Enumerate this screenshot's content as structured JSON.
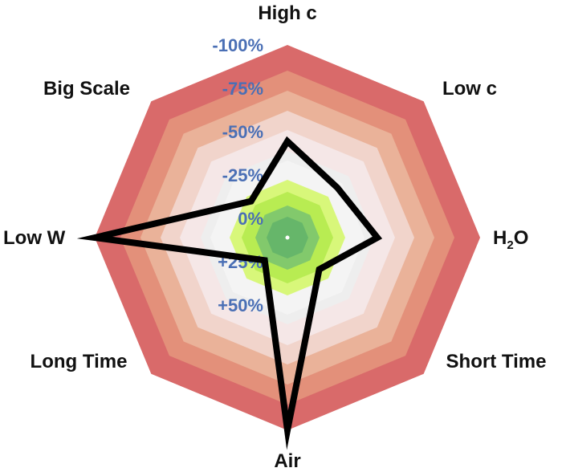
{
  "chart_data": {
    "type": "radar",
    "title": "",
    "axes": [
      "High c",
      "Low c",
      "H2O",
      "Short Time",
      "Air",
      "Long Time",
      "Low W",
      "Big Scale"
    ],
    "axis_display": [
      {
        "main": "High c"
      },
      {
        "main": "Low c"
      },
      {
        "main": "H",
        "sub": "2",
        "tail": "O"
      },
      {
        "main": "Short Time"
      },
      {
        "main": "Air"
      },
      {
        "main": "Long Time"
      },
      {
        "main": "Low W"
      },
      {
        "main": "Big Scale"
      }
    ],
    "ring_labels": [
      "-100%",
      "-75%",
      "-50%",
      "-25%",
      "0%",
      "+25%",
      "+50%"
    ],
    "series": [
      {
        "values": [
          -25,
          -5,
          -20,
          15,
          -100,
          25,
          -100,
          10
        ],
        "color": "#000000"
      }
    ],
    "range": [
      -100,
      50
    ],
    "bands_colors": [
      "#d96a6a",
      "#e3907a",
      "#eab299",
      "#f1d4cb",
      "#f5e7e7",
      "#eeeeee",
      "#f4f4f4",
      "#d8f77a",
      "#b8ec52",
      "#82c96c",
      "#66b66a"
    ]
  }
}
